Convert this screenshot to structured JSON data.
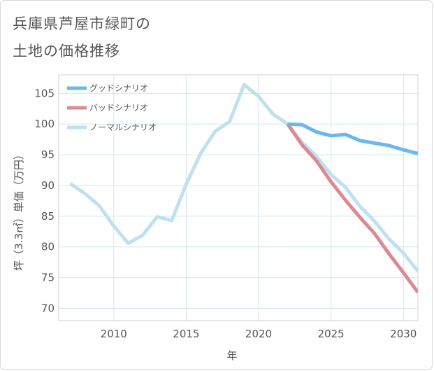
{
  "title": {
    "line1": "兵庫県芦屋市緑町の",
    "line2": "土地の価格推移"
  },
  "chart_data": {
    "type": "line",
    "xlabel": "年",
    "ylabel": "坪（3.3㎡）単価（万円）",
    "xlim": [
      2006.2,
      2031
    ],
    "ylim": [
      68,
      108
    ],
    "xticks": [
      2010,
      2015,
      2020,
      2025,
      2030
    ],
    "yticks": [
      70,
      75,
      80,
      85,
      90,
      95,
      100,
      105
    ],
    "grid": true,
    "legend_position": "top-left",
    "series": [
      {
        "name": "グッドシナリオ",
        "color": "#6ab8ee",
        "x": [
          2022,
          2023,
          2024,
          2025,
          2026,
          2027,
          2028,
          2029,
          2030,
          2031
        ],
        "y": [
          100.0,
          99.9,
          98.7,
          98.1,
          98.3,
          97.3,
          96.9,
          96.5,
          95.8,
          95.2
        ]
      },
      {
        "name": "バッドシナリオ",
        "color": "#dc8a91",
        "x": [
          2022,
          2023,
          2024,
          2025,
          2026,
          2027,
          2028,
          2029,
          2030,
          2031
        ],
        "y": [
          100.0,
          96.6,
          94.0,
          90.6,
          87.6,
          84.8,
          82.2,
          78.9,
          75.8,
          72.6
        ]
      },
      {
        "name": "ノーマルシナリオ",
        "color": "#bfe1ee",
        "x": [
          2007,
          2008,
          2009,
          2010,
          2011,
          2012,
          2013,
          2014,
          2015,
          2016,
          2017,
          2018,
          2019,
          2020,
          2021,
          2022,
          2023,
          2024,
          2025,
          2026,
          2027,
          2028,
          2029,
          2030,
          2031
        ],
        "y": [
          90.3,
          88.7,
          86.7,
          83.4,
          80.6,
          81.9,
          84.9,
          84.3,
          90.2,
          95.2,
          98.8,
          100.4,
          106.4,
          104.5,
          101.6,
          100.0,
          97.0,
          94.7,
          91.8,
          89.7,
          86.6,
          84.2,
          81.3,
          79.0,
          76.0
        ]
      }
    ]
  }
}
